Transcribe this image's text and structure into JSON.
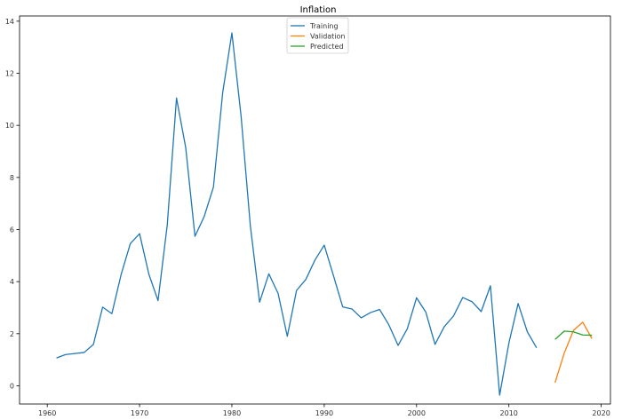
{
  "chart_data": {
    "type": "line",
    "title": "Inflation",
    "xlabel": "",
    "ylabel": "",
    "xlim": [
      1957,
      2021
    ],
    "ylim": [
      -0.7,
      14.2
    ],
    "xticks": [
      1960,
      1970,
      1980,
      1990,
      2000,
      2010,
      2020
    ],
    "yticks": [
      0,
      2,
      4,
      6,
      8,
      10,
      12,
      14
    ],
    "grid": false,
    "legend_position": "top-center",
    "series": [
      {
        "name": "Training",
        "color": "#1f77b4",
        "x": [
          1961,
          1962,
          1963,
          1964,
          1965,
          1966,
          1967,
          1968,
          1969,
          1970,
          1971,
          1972,
          1973,
          1974,
          1975,
          1976,
          1977,
          1978,
          1979,
          1980,
          1981,
          1982,
          1983,
          1984,
          1985,
          1986,
          1987,
          1988,
          1989,
          1990,
          1991,
          1992,
          1993,
          1994,
          1995,
          1996,
          1997,
          1998,
          1999,
          2000,
          2001,
          2002,
          2003,
          2004,
          2005,
          2006,
          2007,
          2008,
          2009,
          2010,
          2011,
          2012,
          2013
        ],
        "values": [
          1.07,
          1.2,
          1.24,
          1.28,
          1.59,
          3.02,
          2.77,
          4.27,
          5.46,
          5.84,
          4.29,
          3.27,
          6.18,
          11.05,
          9.14,
          5.74,
          6.5,
          7.63,
          11.25,
          13.55,
          10.33,
          6.13,
          3.21,
          4.3,
          3.55,
          1.9,
          3.66,
          4.08,
          4.83,
          5.4,
          4.23,
          3.03,
          2.95,
          2.61,
          2.81,
          2.93,
          2.34,
          1.55,
          2.19,
          3.38,
          2.83,
          1.59,
          2.27,
          2.68,
          3.39,
          3.23,
          2.85,
          3.84,
          -0.36,
          1.64,
          3.16,
          2.07,
          1.46
        ]
      },
      {
        "name": "Validation",
        "color": "#ff7f0e",
        "x": [
          2015,
          2016,
          2017,
          2018,
          2019
        ],
        "values": [
          0.12,
          1.26,
          2.13,
          2.44,
          1.81
        ]
      },
      {
        "name": "Predicted",
        "color": "#2ca02c",
        "x": [
          2015,
          2016,
          2017,
          2018,
          2019
        ],
        "values": [
          1.78,
          2.1,
          2.07,
          1.95,
          1.94
        ]
      }
    ]
  }
}
